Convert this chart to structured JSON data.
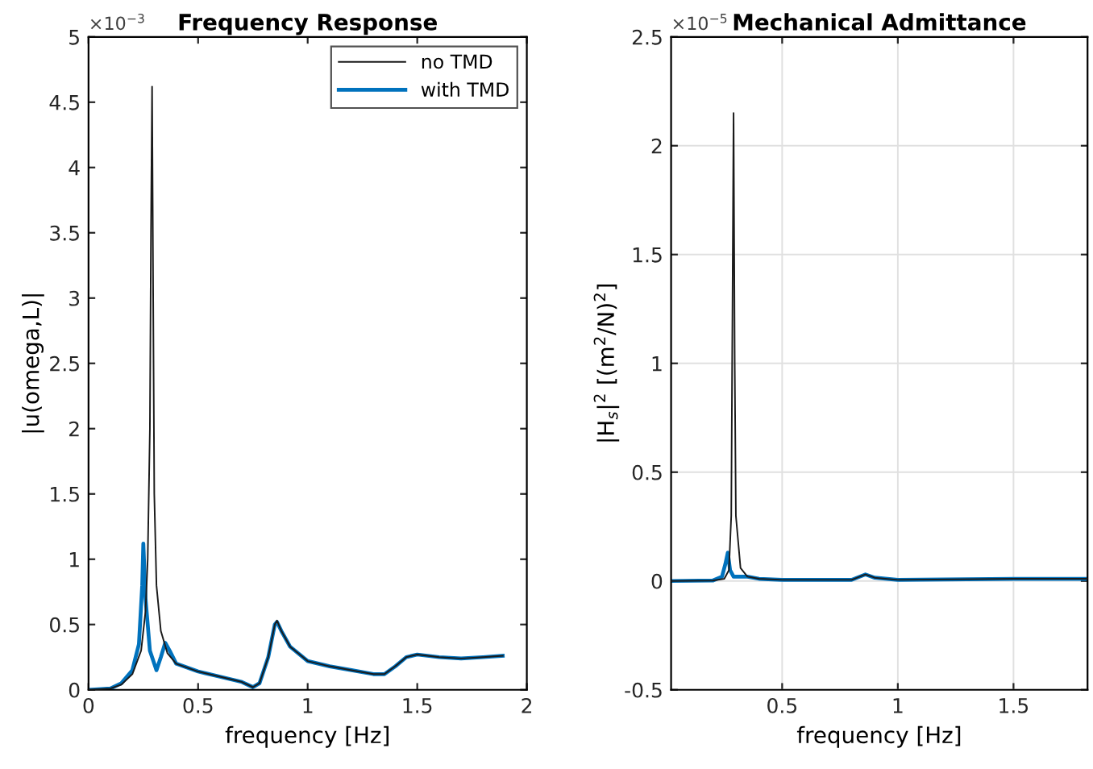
{
  "chart_data": [
    {
      "type": "line",
      "title": "Frequency Response",
      "xlabel": "frequency [Hz]",
      "ylabel": "|u(omega,L)|",
      "annotations": [
        "×10$^{−3}$"
      ],
      "xlim": [
        0,
        2
      ],
      "xticks": [
        0,
        0.5,
        1,
        1.5,
        2
      ],
      "ylim": [
        0,
        5
      ],
      "yticks": [
        0,
        0.5,
        1,
        1.5,
        2,
        2.5,
        3,
        3.5,
        4,
        4.5,
        5
      ],
      "grid": false,
      "legend": "top right",
      "series": [
        {
          "name": "no TMD",
          "color": "#1a1a1a",
          "x": [
            0,
            0.1,
            0.15,
            0.2,
            0.24,
            0.26,
            0.27,
            0.28,
            0.285,
            0.29,
            0.295,
            0.3,
            0.31,
            0.33,
            0.36,
            0.4,
            0.5,
            0.6,
            0.7,
            0.75,
            0.78,
            0.82,
            0.85,
            0.86,
            0.88,
            0.92,
            1.0,
            1.1,
            1.2,
            1.3,
            1.35,
            1.4,
            1.45,
            1.5,
            1.6,
            1.7,
            1.8,
            1.89
          ],
          "values": [
            0,
            0.01,
            0.04,
            0.12,
            0.3,
            0.6,
            1.0,
            2.0,
            3.5,
            4.62,
            3.0,
            1.5,
            0.8,
            0.45,
            0.28,
            0.2,
            0.14,
            0.1,
            0.06,
            0.02,
            0.05,
            0.25,
            0.5,
            0.53,
            0.45,
            0.33,
            0.22,
            0.18,
            0.15,
            0.12,
            0.12,
            0.18,
            0.25,
            0.27,
            0.25,
            0.24,
            0.25,
            0.26
          ]
        },
        {
          "name": "with TMD",
          "color": "#0072bd",
          "x": [
            0,
            0.1,
            0.15,
            0.2,
            0.23,
            0.245,
            0.25,
            0.26,
            0.28,
            0.31,
            0.33,
            0.35,
            0.37,
            0.4,
            0.5,
            0.6,
            0.7,
            0.75,
            0.78,
            0.82,
            0.85,
            0.86,
            0.88,
            0.92,
            1.0,
            1.1,
            1.2,
            1.3,
            1.35,
            1.4,
            1.45,
            1.5,
            1.6,
            1.7,
            1.8,
            1.89
          ],
          "values": [
            0,
            0.01,
            0.05,
            0.15,
            0.35,
            0.8,
            1.12,
            0.7,
            0.3,
            0.15,
            0.25,
            0.36,
            0.3,
            0.2,
            0.14,
            0.1,
            0.06,
            0.02,
            0.05,
            0.25,
            0.5,
            0.52,
            0.45,
            0.33,
            0.22,
            0.18,
            0.15,
            0.12,
            0.12,
            0.18,
            0.25,
            0.27,
            0.25,
            0.24,
            0.25,
            0.26
          ]
        }
      ]
    },
    {
      "type": "line",
      "title": "Mechanical Admittance",
      "xlabel": "frequency [Hz]",
      "ylabel": "|H$_{s}$|$^{2}$ [(m$^{2}$/N)$^{2}$]",
      "annotations": [
        "×10$^{−5}$"
      ],
      "xlim": [
        0.02,
        1.82
      ],
      "xticks": [
        0.5,
        1,
        1.5
      ],
      "ylim": [
        -0.5,
        2.5
      ],
      "yticks": [
        -0.5,
        0,
        0.5,
        1,
        1.5,
        2,
        2.5
      ],
      "grid": true,
      "series": [
        {
          "color": "#1a1a1a",
          "x": [
            0.02,
            0.2,
            0.25,
            0.27,
            0.28,
            0.285,
            0.29,
            0.295,
            0.3,
            0.32,
            0.35,
            0.4,
            0.5,
            0.8,
            0.86,
            0.9,
            1.0,
            1.5,
            1.82
          ],
          "values": [
            0,
            0.002,
            0.01,
            0.05,
            0.3,
            1.2,
            2.15,
            1.0,
            0.3,
            0.06,
            0.02,
            0.01,
            0.005,
            0.005,
            0.03,
            0.015,
            0.005,
            0.01,
            0.01
          ]
        },
        {
          "color": "#0072bd",
          "x": [
            0.02,
            0.2,
            0.24,
            0.255,
            0.265,
            0.275,
            0.29,
            0.35,
            0.4,
            0.5,
            0.8,
            0.86,
            0.9,
            1.0,
            1.5,
            1.82
          ],
          "values": [
            0,
            0.002,
            0.02,
            0.08,
            0.13,
            0.05,
            0.02,
            0.02,
            0.01,
            0.005,
            0.005,
            0.03,
            0.015,
            0.005,
            0.01,
            0.01
          ]
        }
      ]
    }
  ]
}
